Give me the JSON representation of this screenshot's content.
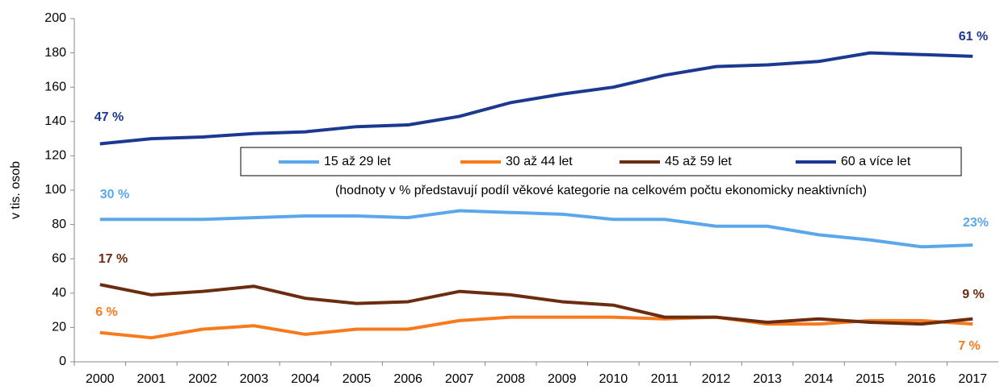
{
  "chart_data": {
    "type": "line",
    "y_label": "v tis. osob",
    "note": "(hodnoty v % představují podíl věkové kategorie na celkovém počtu ekonomicky neaktivních)",
    "categories": [
      "2000",
      "2001",
      "2002",
      "2003",
      "2004",
      "2005",
      "2006",
      "2007",
      "2008",
      "2009",
      "2010",
      "2011",
      "2012",
      "2013",
      "2014",
      "2015",
      "2016",
      "2017"
    ],
    "series": [
      {
        "name": "15 až 29 let",
        "color": "#5ba7ec",
        "values": [
          83,
          83,
          83,
          84,
          85,
          85,
          84,
          88,
          87,
          86,
          83,
          83,
          79,
          79,
          74,
          71,
          67,
          68
        ]
      },
      {
        "name": "30 až 44 let",
        "color": "#f77a1e",
        "values": [
          17,
          14,
          19,
          21,
          16,
          19,
          19,
          24,
          26,
          26,
          26,
          25,
          26,
          22,
          22,
          24,
          24,
          22
        ]
      },
      {
        "name": "45 až 59 let",
        "color": "#6b2c10",
        "values": [
          45,
          39,
          41,
          44,
          37,
          34,
          35,
          41,
          39,
          35,
          33,
          26,
          26,
          23,
          25,
          23,
          22,
          25
        ]
      },
      {
        "name": "60 a více let",
        "color": "#1b3990",
        "values": [
          127,
          130,
          131,
          133,
          134,
          137,
          138,
          143,
          151,
          156,
          160,
          167,
          172,
          173,
          175,
          180,
          179,
          178
        ]
      }
    ],
    "annotations": [
      {
        "text": "47 %",
        "color": "#1b3990"
      },
      {
        "text": "30 %",
        "color": "#5ba7ec"
      },
      {
        "text": "17 %",
        "color": "#6b2c10"
      },
      {
        "text": "6 %",
        "color": "#f77a1e"
      },
      {
        "text": "61 %",
        "color": "#1b3990"
      },
      {
        "text": "23%",
        "color": "#5ba7ec"
      },
      {
        "text": "9 %",
        "color": "#6b2c10"
      },
      {
        "text": "7 %",
        "color": "#f77a1e"
      }
    ],
    "ylim": [
      0,
      200
    ],
    "yticks": [
      0,
      20,
      40,
      60,
      80,
      100,
      120,
      140,
      160,
      180,
      200
    ],
    "grid": false
  }
}
